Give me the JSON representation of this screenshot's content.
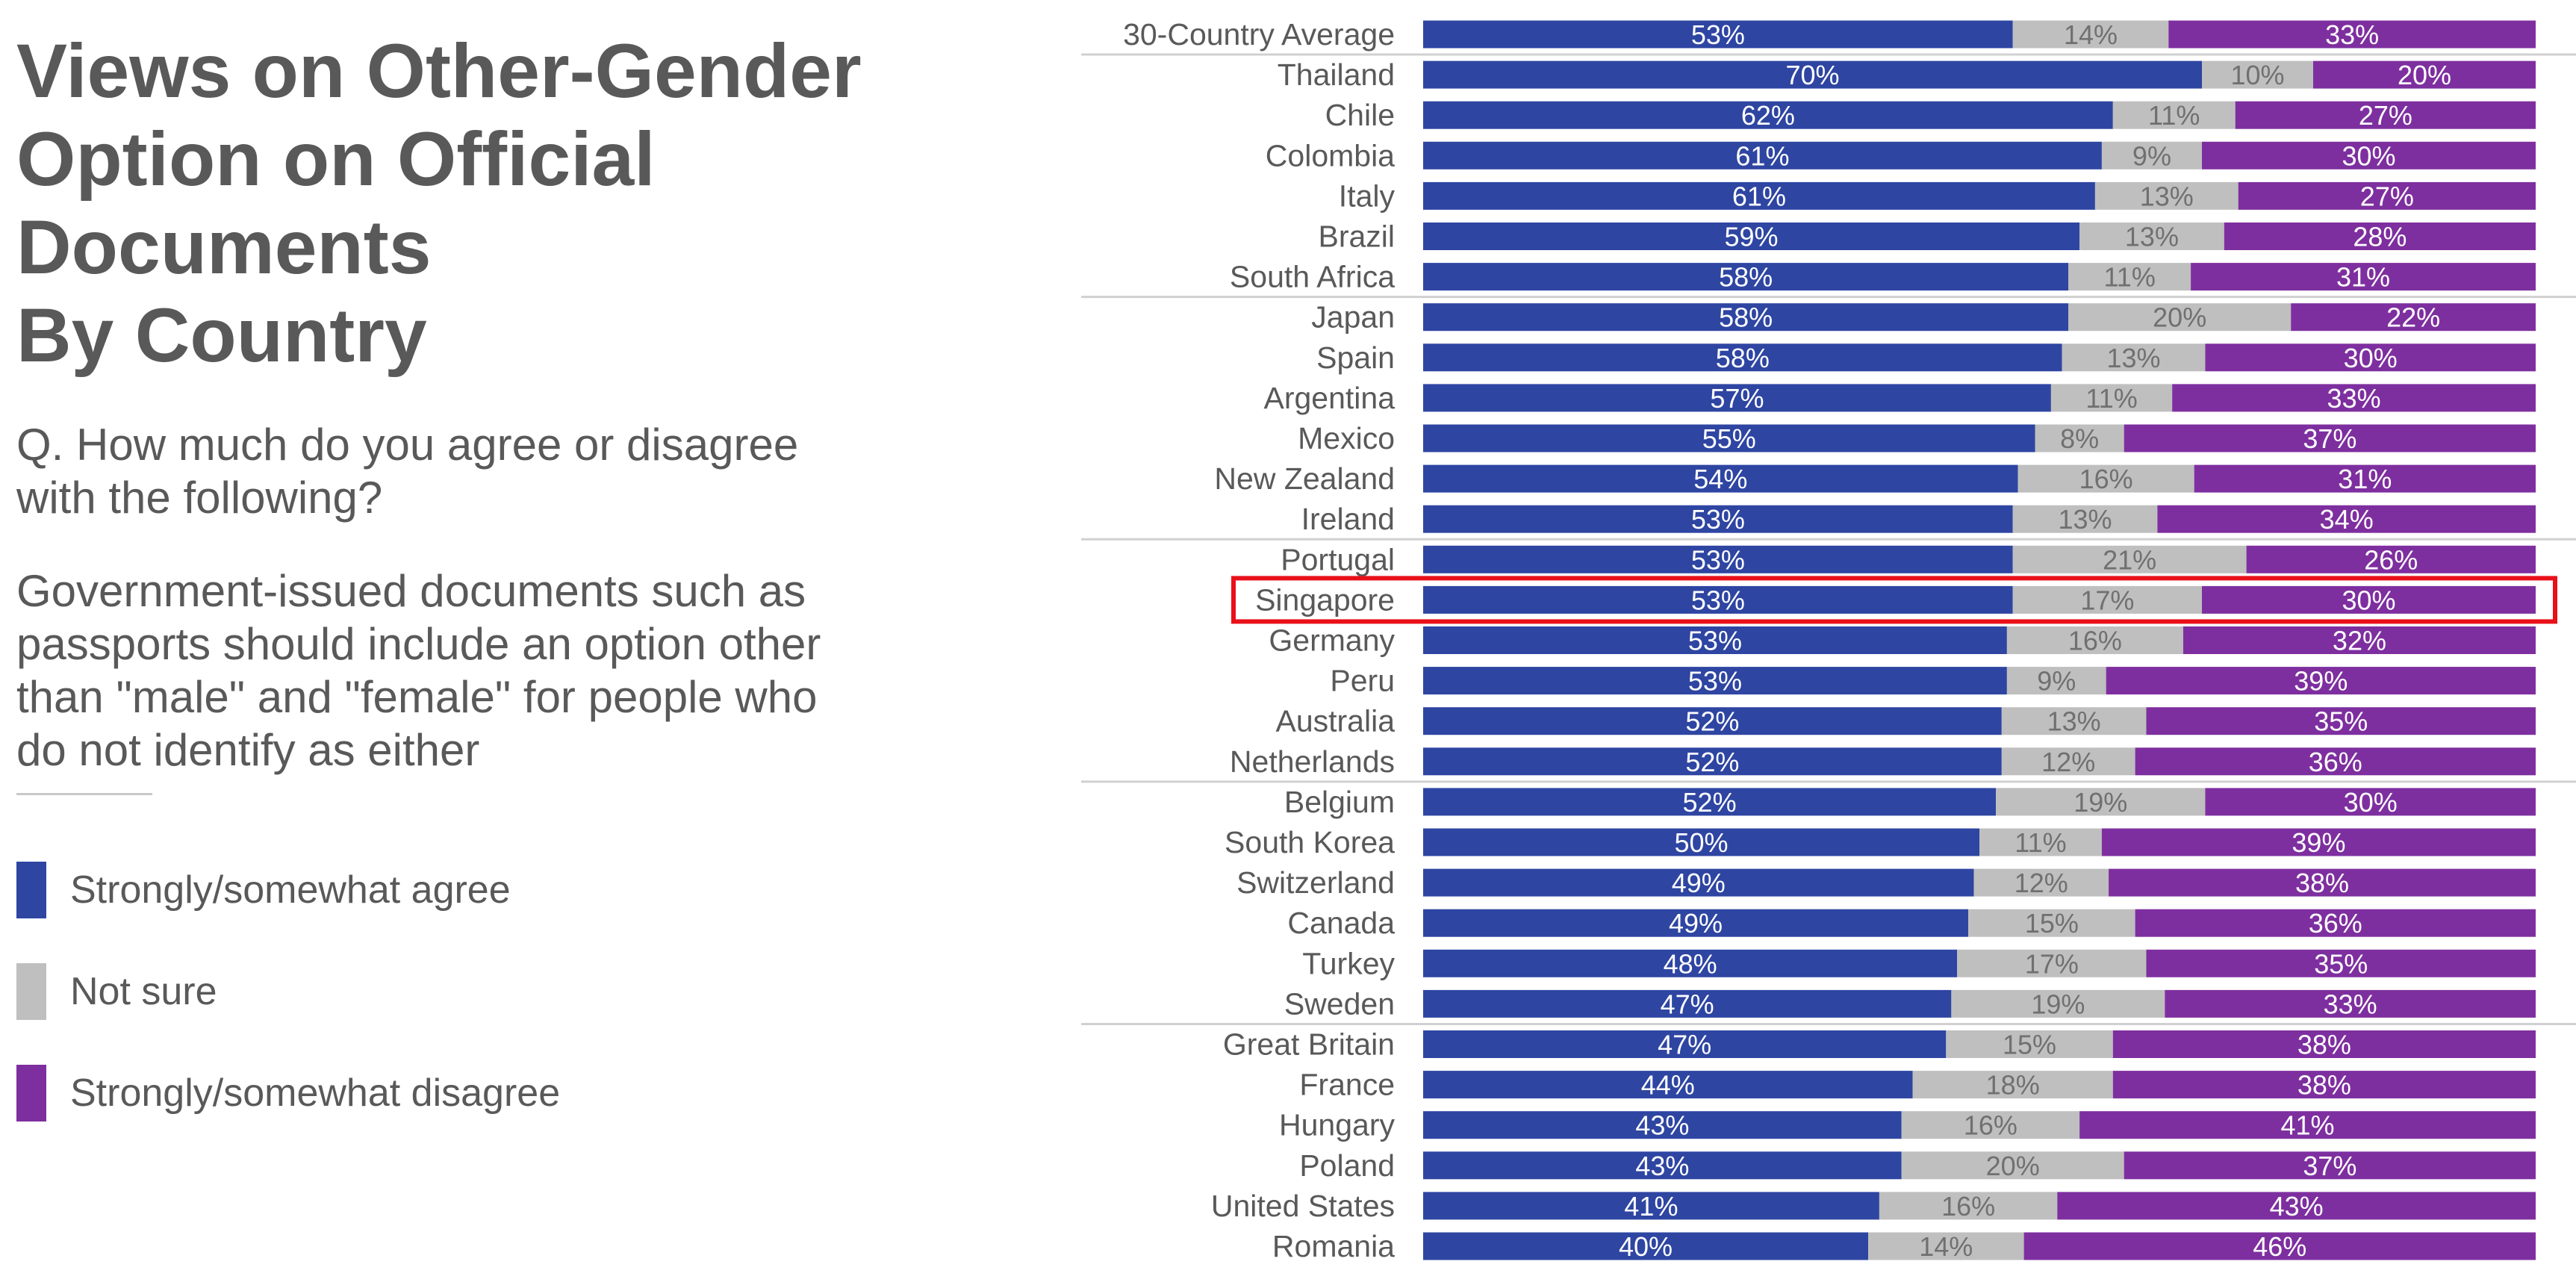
{
  "header": {
    "title_lines": [
      "Views on Other-Gender",
      "Option on Official Documents",
      "By Country"
    ],
    "question_lines": [
      "Q. How much do you agree or disagree",
      "with the following?"
    ],
    "statement_lines": [
      "Government-issued documents such as",
      "passports should include an option other",
      "than \"male\" and \"female\" for people who",
      "do not identify as either"
    ]
  },
  "colors": {
    "agree": "#2E45A2",
    "not_sure": "#BFBFBF",
    "disagree": "#7E2F9F",
    "highlight": "#E8101A"
  },
  "chart_data": {
    "type": "bar",
    "orientation": "horizontal",
    "stacked": true,
    "value_unit": "%",
    "categories": [
      "30-Country Average",
      "Thailand",
      "Chile",
      "Colombia",
      "Italy",
      "Brazil",
      "South Africa",
      "Japan",
      "Spain",
      "Argentina",
      "Mexico",
      "New Zealand",
      "Ireland",
      "Portugal",
      "Singapore",
      "Germany",
      "Peru",
      "Australia",
      "Netherlands",
      "Belgium",
      "South Korea",
      "Switzerland",
      "Canada",
      "Turkey",
      "Sweden",
      "Great Britain",
      "France",
      "Hungary",
      "Poland",
      "United States",
      "Romania"
    ],
    "series": [
      {
        "name": "Strongly/somewhat agree",
        "values": [
          53,
          70,
          62,
          61,
          61,
          59,
          58,
          58,
          58,
          57,
          55,
          54,
          53,
          53,
          53,
          53,
          53,
          52,
          52,
          52,
          50,
          49,
          49,
          48,
          47,
          47,
          44,
          43,
          43,
          41,
          40
        ]
      },
      {
        "name": "Not sure",
        "values": [
          14,
          10,
          11,
          9,
          13,
          13,
          11,
          20,
          13,
          11,
          8,
          16,
          13,
          21,
          17,
          16,
          9,
          13,
          12,
          19,
          11,
          12,
          15,
          17,
          19,
          15,
          18,
          16,
          20,
          16,
          14
        ]
      },
      {
        "name": "Strongly/somewhat disagree",
        "values": [
          33,
          20,
          27,
          30,
          27,
          28,
          31,
          22,
          30,
          33,
          37,
          31,
          34,
          26,
          30,
          32,
          39,
          35,
          36,
          30,
          39,
          38,
          36,
          35,
          33,
          38,
          38,
          41,
          37,
          43,
          46
        ]
      }
    ],
    "highlighted_category": "Singapore",
    "group_dividers_after": [
      "30-Country Average",
      "South Africa",
      "Ireland",
      "Netherlands",
      "Sweden"
    ],
    "legend_position": "left",
    "grid": false
  }
}
